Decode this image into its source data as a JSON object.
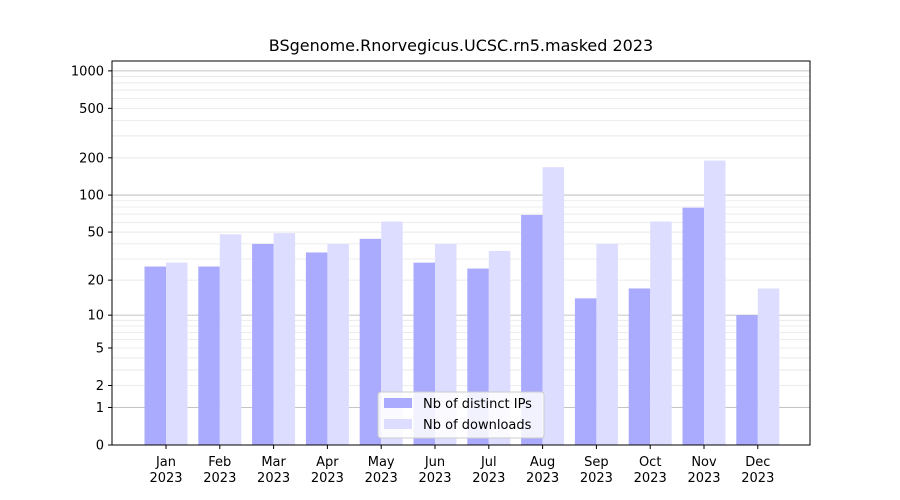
{
  "chart_data": {
    "type": "bar",
    "title": "BSgenome.Rnorvegicus.UCSC.rn5.masked 2023",
    "xlabel": "",
    "ylabel": "",
    "y_scale": "log(1+y)",
    "ylim": [
      0,
      1200
    ],
    "y_ticks": [
      {
        "value": 0,
        "label": "0"
      },
      {
        "value": 1,
        "label": "1"
      },
      {
        "value": 2,
        "label": "2"
      },
      {
        "value": 5,
        "label": "5"
      },
      {
        "value": 10,
        "label": "10"
      },
      {
        "value": 20,
        "label": "20"
      },
      {
        "value": 50,
        "label": "50"
      },
      {
        "value": 100,
        "label": "100"
      },
      {
        "value": 200,
        "label": "200"
      },
      {
        "value": 500,
        "label": "500"
      },
      {
        "value": 1000,
        "label": "1000"
      }
    ],
    "categories": [
      {
        "month": "Jan",
        "year": "2023"
      },
      {
        "month": "Feb",
        "year": "2023"
      },
      {
        "month": "Mar",
        "year": "2023"
      },
      {
        "month": "Apr",
        "year": "2023"
      },
      {
        "month": "May",
        "year": "2023"
      },
      {
        "month": "Jun",
        "year": "2023"
      },
      {
        "month": "Jul",
        "year": "2023"
      },
      {
        "month": "Aug",
        "year": "2023"
      },
      {
        "month": "Sep",
        "year": "2023"
      },
      {
        "month": "Oct",
        "year": "2023"
      },
      {
        "month": "Nov",
        "year": "2023"
      },
      {
        "month": "Dec",
        "year": "2023"
      }
    ],
    "series": [
      {
        "name": "Nb of distinct IPs",
        "color": "#aaaaff",
        "values": [
          26,
          26,
          40,
          34,
          44,
          28,
          25,
          69,
          14,
          17,
          79,
          10
        ]
      },
      {
        "name": "Nb of downloads",
        "color": "#ddddff",
        "values": [
          28,
          48,
          49,
          40,
          61,
          40,
          35,
          168,
          40,
          61,
          190,
          17
        ]
      }
    ],
    "grid": true,
    "legend_position": "bottom-center"
  }
}
